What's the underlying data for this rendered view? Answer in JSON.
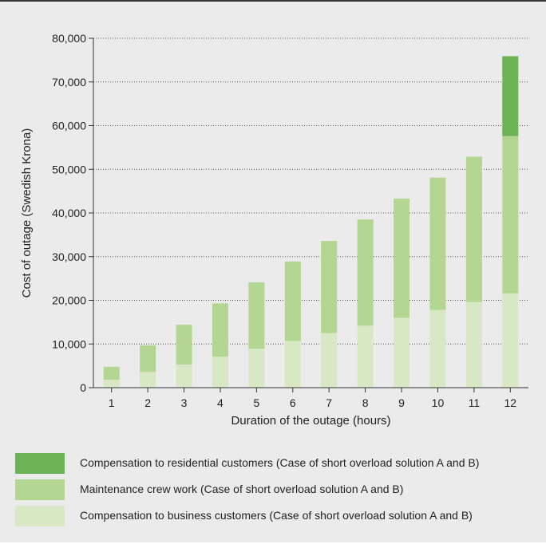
{
  "chart_data": {
    "type": "bar",
    "stacked": true,
    "xlabel": "Duration of the outage (hours)",
    "ylabel": "Cost of outage (Swedish Krona)",
    "ylim": [
      0,
      80000
    ],
    "yticks": [
      0,
      10000,
      20000,
      30000,
      40000,
      50000,
      60000,
      70000,
      80000
    ],
    "ytick_labels": [
      "0",
      "10,000",
      "20,000",
      "30,000",
      "40,000",
      "50,000",
      "60,000",
      "70,000",
      "80,000"
    ],
    "grid": "horizontal dotted",
    "categories": [
      "1",
      "2",
      "3",
      "4",
      "5",
      "6",
      "7",
      "8",
      "9",
      "10",
      "11",
      "12"
    ],
    "series": [
      {
        "name": "Compensation to business customers (Case of short overload solution A and B)",
        "color": "#d9e8c4",
        "values": [
          1800,
          3600,
          5300,
          7100,
          8900,
          10700,
          12500,
          14200,
          16000,
          17800,
          19600,
          21600
        ]
      },
      {
        "name": "Maintenance crew work (Case of short overload solution A and B)",
        "color": "#b3d692",
        "values": [
          3000,
          6100,
          9100,
          12200,
          15200,
          18200,
          21100,
          24300,
          27300,
          30300,
          33300,
          36000
        ]
      },
      {
        "name": "Compensation to residential customers (Case of short overload solution A and B)",
        "color": "#6cb356",
        "values": [
          0,
          0,
          0,
          0,
          0,
          0,
          0,
          0,
          0,
          0,
          0,
          18300
        ]
      }
    ],
    "legend_order": [
      2,
      1,
      0
    ],
    "legend_position": "bottom-left"
  }
}
